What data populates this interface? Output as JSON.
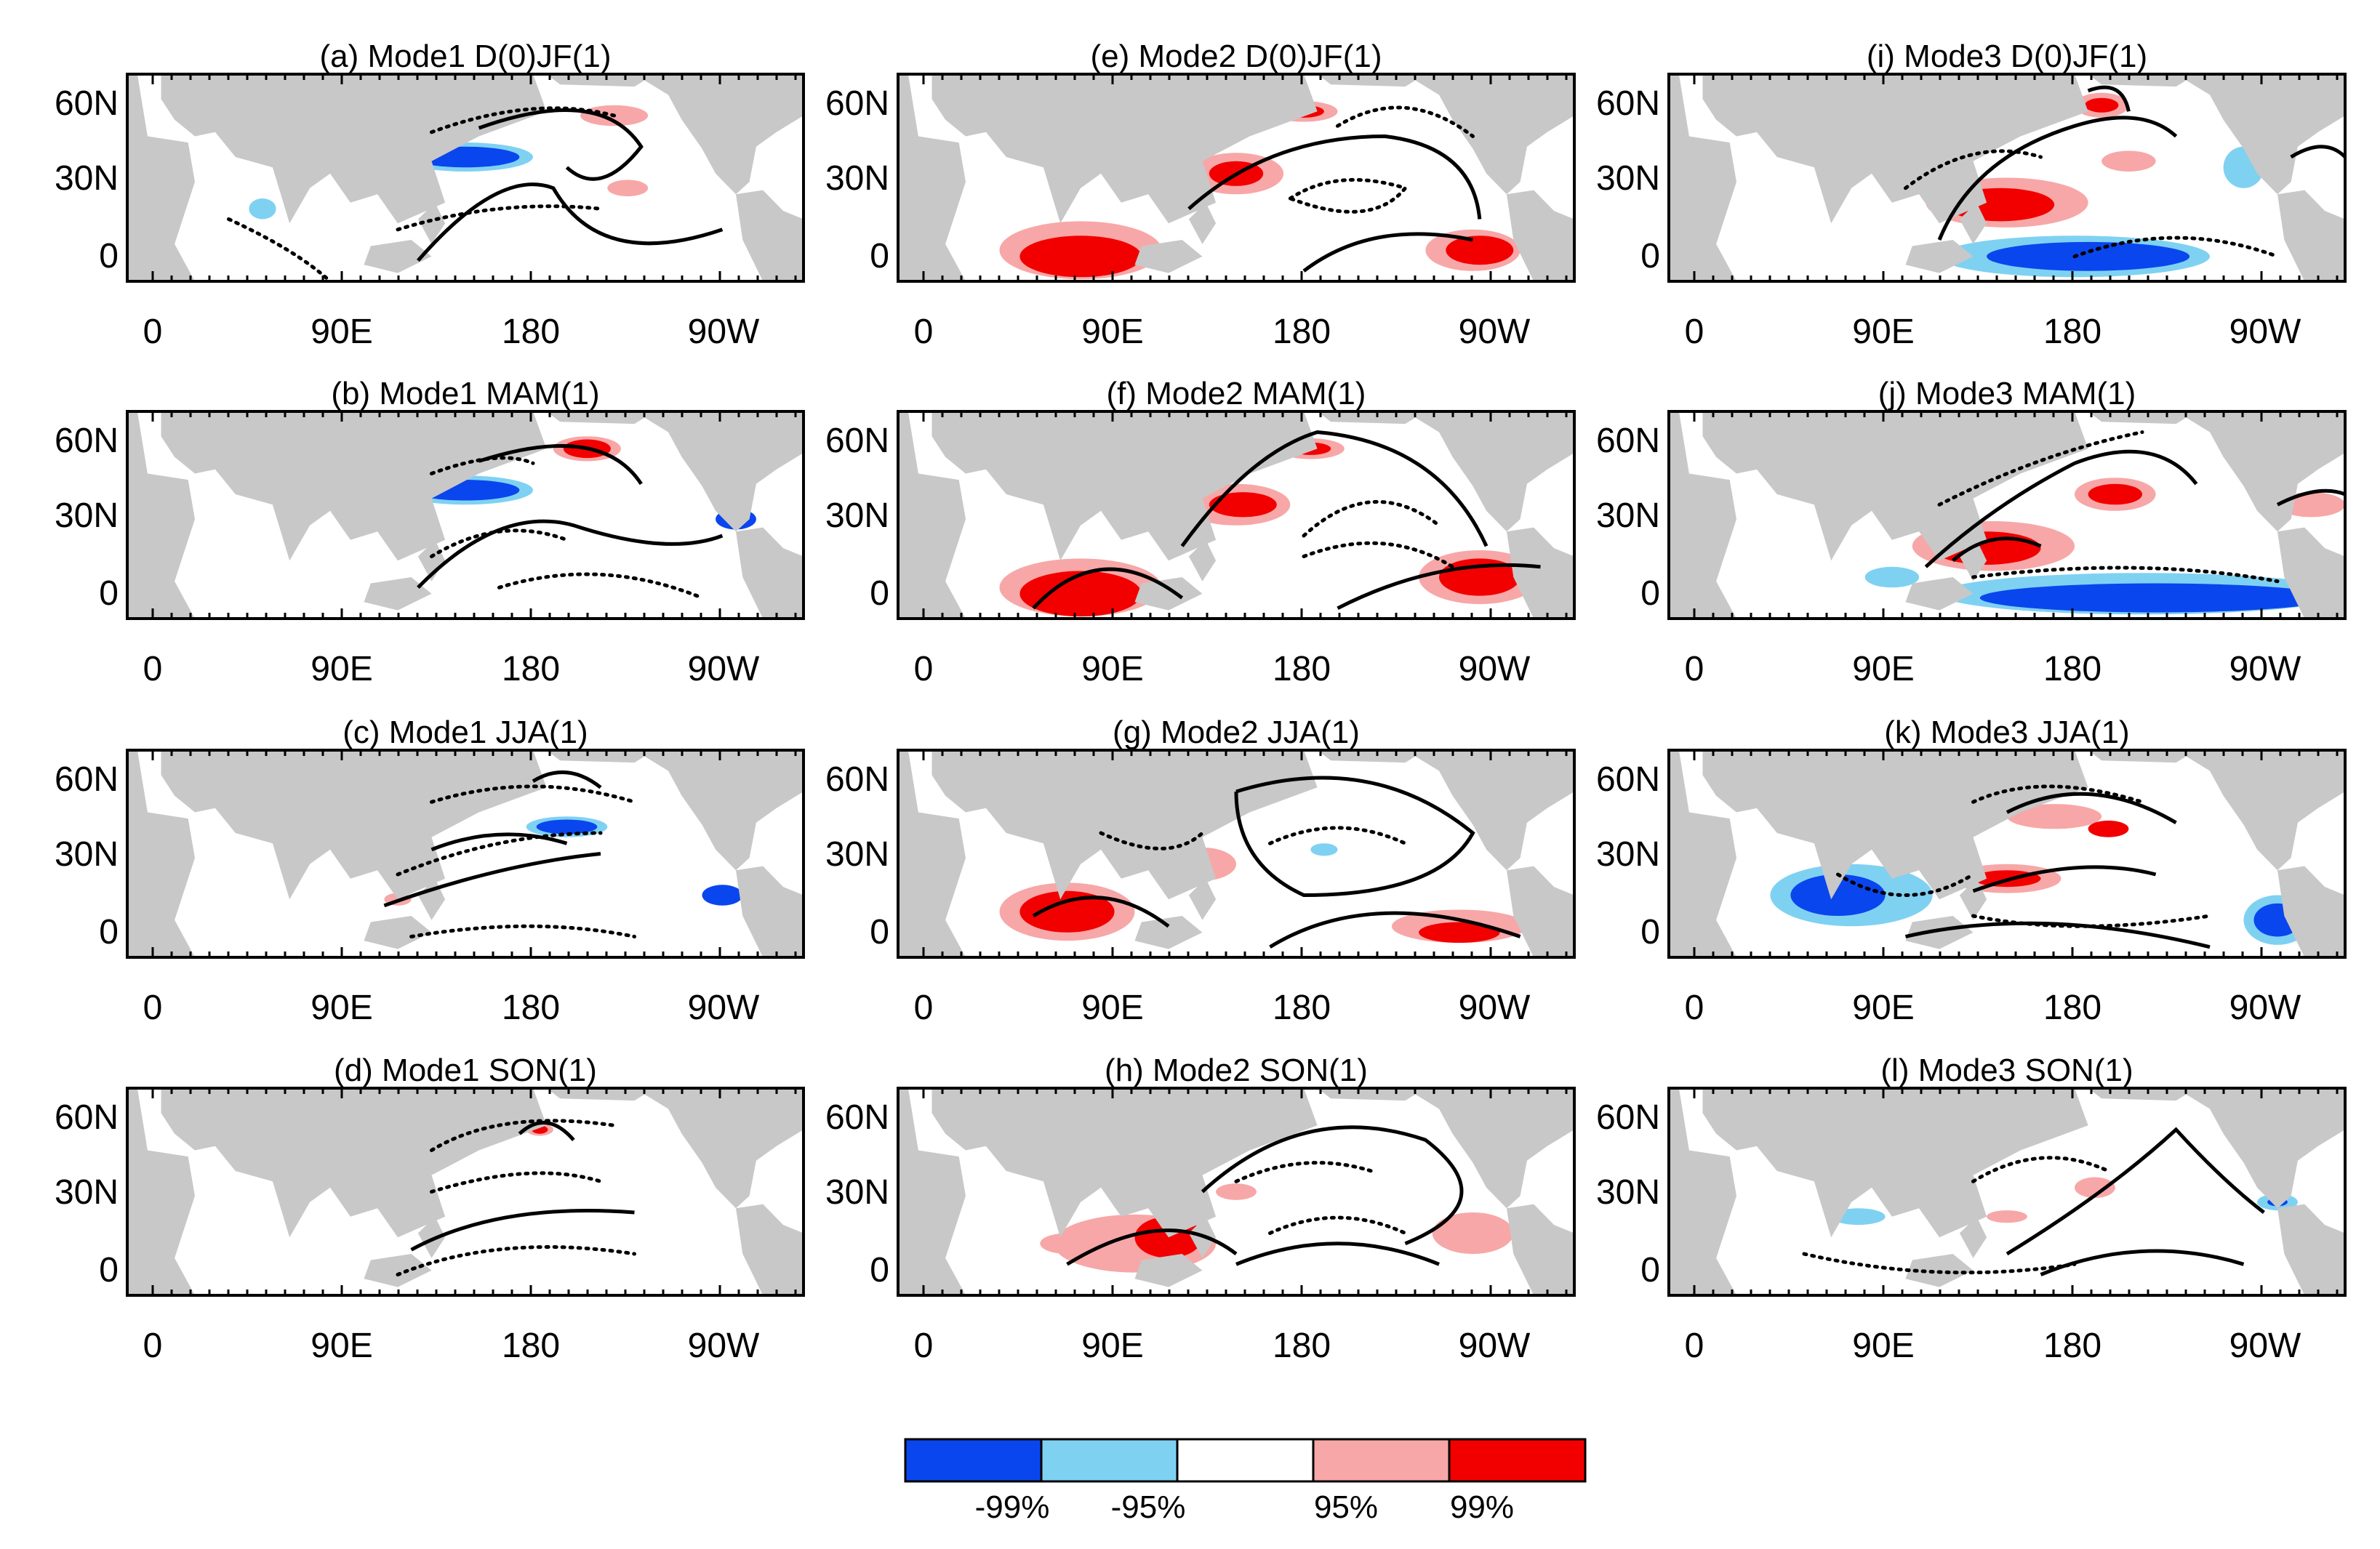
{
  "figure": {
    "panels": [
      {
        "title": "(a) Mode1 D(0)JF(1)"
      },
      {
        "title": "(b) Mode1 MAM(1)"
      },
      {
        "title": "(c) Mode1 JJA(1)"
      },
      {
        "title": "(d) Mode1 SON(1)"
      },
      {
        "title": "(e) Mode2 D(0)JF(1)"
      },
      {
        "title": "(f) Mode2 MAM(1)"
      },
      {
        "title": "(g) Mode2 JJA(1)"
      },
      {
        "title": "(h) Mode2 SON(1)"
      },
      {
        "title": "(i) Mode3 D(0)JF(1)"
      },
      {
        "title": "(j) Mode3 MAM(1)"
      },
      {
        "title": "(k) Mode3 JJA(1)"
      },
      {
        "title": "(l) Mode3 SON(1)"
      }
    ],
    "axes": {
      "lon_ticks": [
        "0",
        "90E",
        "180",
        "90W"
      ],
      "lat_ticks": [
        "60N",
        "30N",
        "0"
      ]
    },
    "legend": {
      "colors": [
        "#0a46ee",
        "#7fd1f2",
        "#ffffff",
        "#f7a7a7",
        "#f20000"
      ],
      "labels": [
        "-99%",
        "-95%",
        "95%",
        "99%"
      ]
    },
    "colors": {
      "land": "#c8c8c8",
      "ocean": "#ffffff",
      "neg99": "#0a46ee",
      "neg95": "#7fd1f2",
      "pos95": "#f7a7a7",
      "pos99": "#f20000"
    }
  }
}
